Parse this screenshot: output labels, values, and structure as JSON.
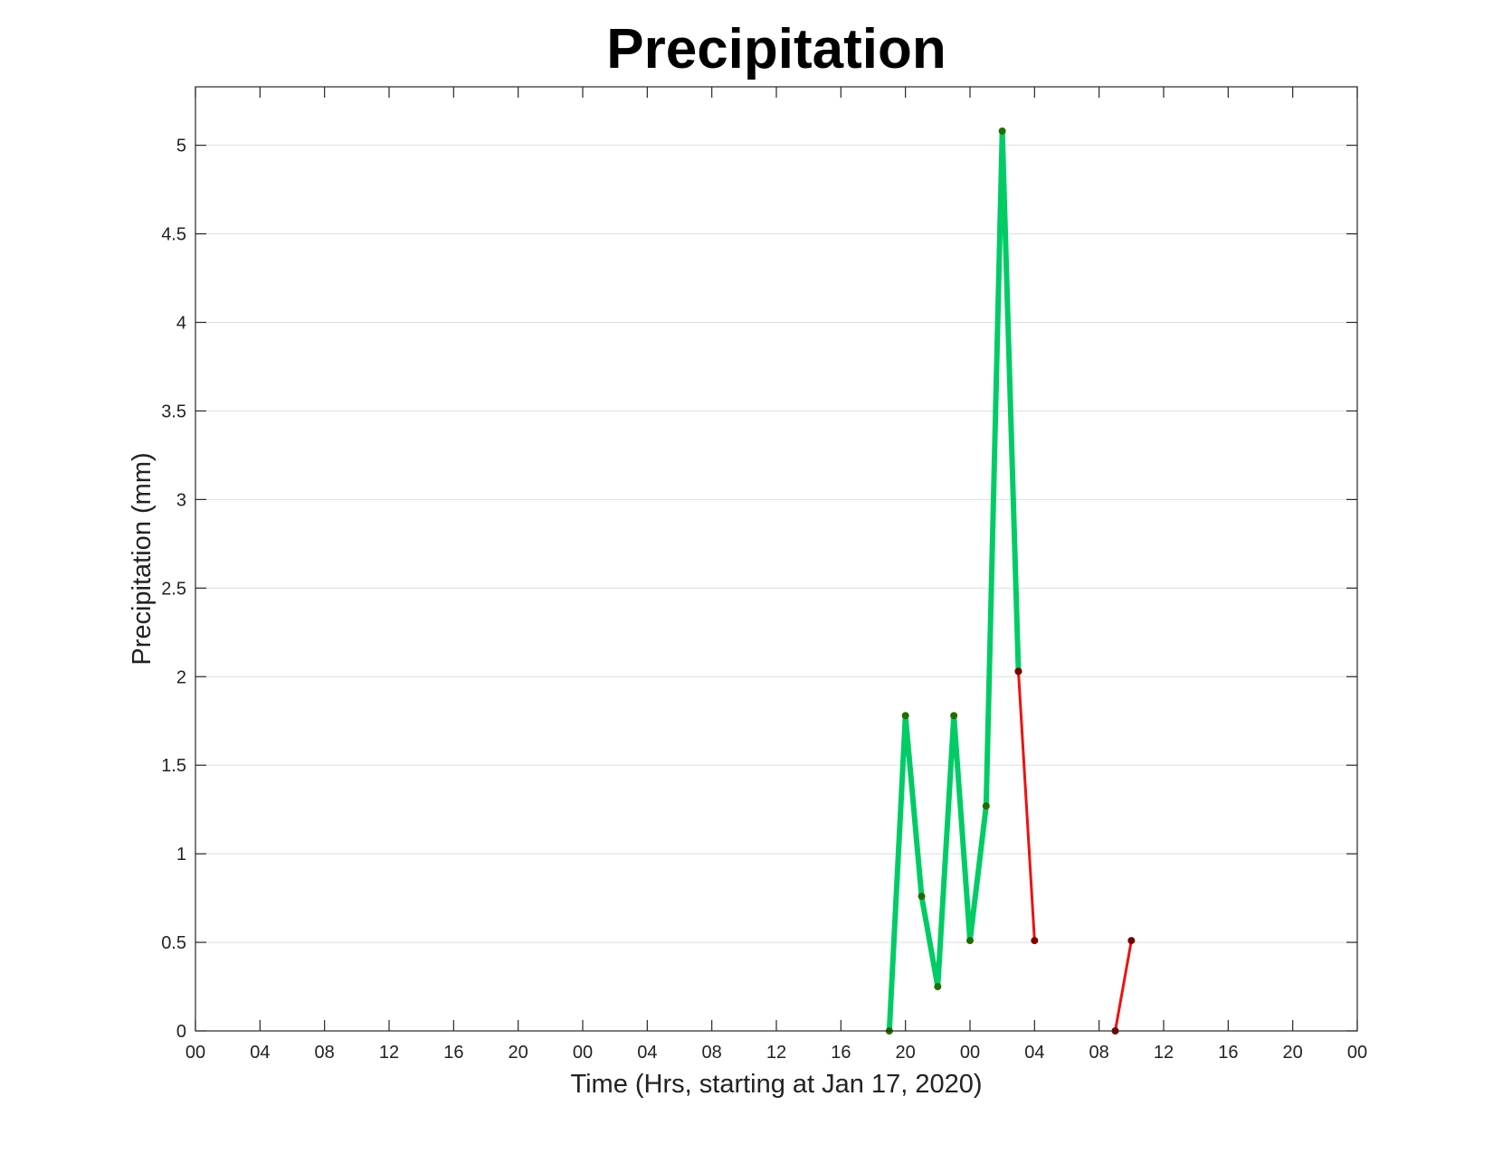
{
  "chart_data": {
    "type": "line",
    "title": "Precipitation",
    "xlabel": "Time (Hrs, starting at Jan 17, 2020)",
    "ylabel": "Precipitation (mm)",
    "x_unit": "hours",
    "xlim": [
      0,
      72
    ],
    "ylim": [
      0,
      5.33
    ],
    "grid": "y-major",
    "x_ticks": [
      {
        "value": 0,
        "label": "00"
      },
      {
        "value": 4,
        "label": "04"
      },
      {
        "value": 8,
        "label": "08"
      },
      {
        "value": 12,
        "label": "12"
      },
      {
        "value": 16,
        "label": "16"
      },
      {
        "value": 20,
        "label": "20"
      },
      {
        "value": 24,
        "label": "00"
      },
      {
        "value": 28,
        "label": "04"
      },
      {
        "value": 32,
        "label": "08"
      },
      {
        "value": 36,
        "label": "12"
      },
      {
        "value": 40,
        "label": "16"
      },
      {
        "value": 44,
        "label": "20"
      },
      {
        "value": 48,
        "label": "00"
      },
      {
        "value": 52,
        "label": "04"
      },
      {
        "value": 56,
        "label": "08"
      },
      {
        "value": 60,
        "label": "12"
      },
      {
        "value": 64,
        "label": "16"
      },
      {
        "value": 68,
        "label": "20"
      },
      {
        "value": 72,
        "label": "00"
      }
    ],
    "y_ticks": [
      {
        "value": 0,
        "label": "0"
      },
      {
        "value": 0.5,
        "label": "0.5"
      },
      {
        "value": 1,
        "label": "1"
      },
      {
        "value": 1.5,
        "label": "1.5"
      },
      {
        "value": 2,
        "label": "2"
      },
      {
        "value": 2.5,
        "label": "2.5"
      },
      {
        "value": 3,
        "label": "3"
      },
      {
        "value": 3.5,
        "label": "3.5"
      },
      {
        "value": 4,
        "label": "4"
      },
      {
        "value": 4.5,
        "label": "4.5"
      },
      {
        "value": 5,
        "label": "5"
      }
    ],
    "series": [
      {
        "color": "#00cc66",
        "marker_color": "#1f6e00",
        "line_weight": "thick",
        "points": [
          {
            "x": 43,
            "y": 0
          },
          {
            "x": 44,
            "y": 1.78
          },
          {
            "x": 45,
            "y": 0.76
          },
          {
            "x": 46,
            "y": 0.25
          },
          {
            "x": 47,
            "y": 1.78
          },
          {
            "x": 48,
            "y": 0.51
          },
          {
            "x": 49,
            "y": 1.27
          },
          {
            "x": 50,
            "y": 5.08
          },
          {
            "x": 51,
            "y": 2.03
          }
        ]
      },
      {
        "color": "#ee1111",
        "marker_color": "#7a0000",
        "line_weight": "thin",
        "points": [
          {
            "x": 51,
            "y": 2.03
          },
          {
            "x": 52,
            "y": 0.51
          }
        ]
      },
      {
        "color": "#ee1111",
        "marker_color": "#7a0000",
        "line_weight": "thin",
        "points": [
          {
            "x": 57,
            "y": 0
          },
          {
            "x": 58,
            "y": 0.51
          }
        ]
      }
    ]
  }
}
